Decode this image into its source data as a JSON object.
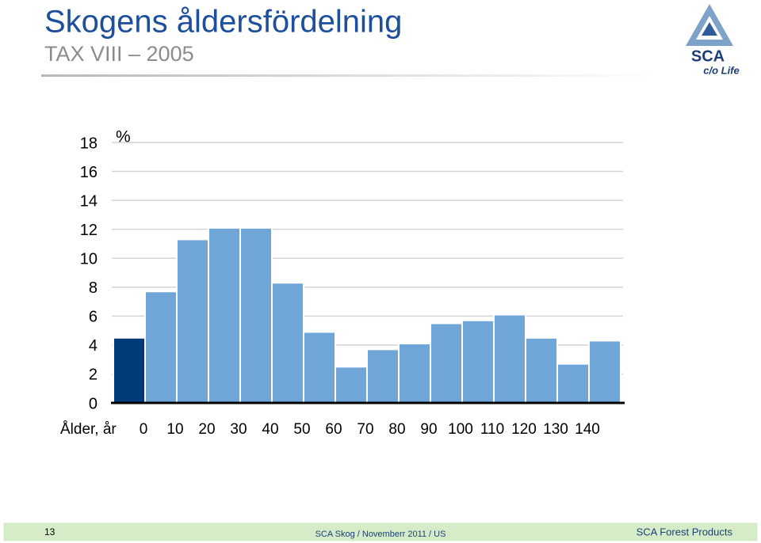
{
  "chart_data": {
    "type": "histogram",
    "title": "Skogens åldersfördelning",
    "subtitle": "TAX VIII – 2005",
    "y_label": "%",
    "x_label": "Ålder, år",
    "bins": [
      -10,
      0,
      10,
      20,
      30,
      40,
      50,
      60,
      70,
      80,
      90,
      100,
      110,
      120,
      130,
      140,
      150
    ],
    "values": [
      4.5,
      7.7,
      11.3,
      12.1,
      12.1,
      8.3,
      4.9,
      2.5,
      3.7,
      4.1,
      5.5,
      5.7,
      6.1,
      4.5,
      2.7,
      4.3
    ],
    "colors": [
      "#003a78",
      "#6fa5d7",
      "#6fa5d7",
      "#6fa5d7",
      "#6fa5d7",
      "#6fa5d7",
      "#6fa5d7",
      "#6fa5d7",
      "#6fa5d7",
      "#6fa5d7",
      "#6fa5d7",
      "#6fa5d7",
      "#6fa5d7",
      "#6fa5d7",
      "#6fa5d7",
      "#6fa5d7"
    ],
    "xlim": [
      -10,
      150
    ],
    "xticks": [
      0,
      10,
      20,
      30,
      40,
      50,
      60,
      70,
      80,
      90,
      100,
      110,
      120,
      130,
      140
    ],
    "ylim": [
      0,
      18
    ],
    "yticks": [
      0,
      2,
      4,
      6,
      8,
      10,
      12,
      14,
      16,
      18
    ],
    "grid": true
  },
  "logo": {
    "name": "SCA",
    "tagline": "c/o Life"
  },
  "footer": {
    "page_number": "13",
    "center": "SCA Skog / Novemberr 2011 / US",
    "right": "SCA Forest Products"
  }
}
